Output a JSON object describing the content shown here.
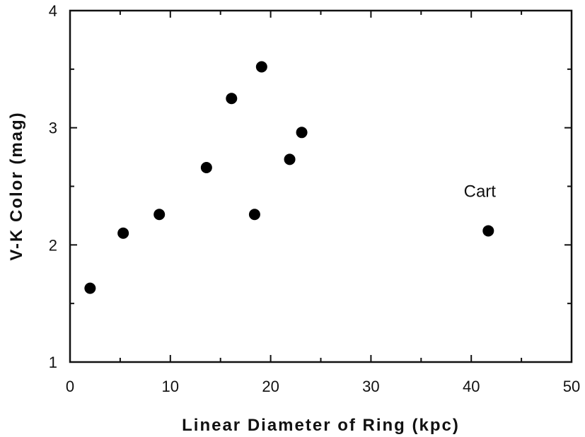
{
  "chart_data": {
    "type": "scatter",
    "xlabel": "Linear Diameter of Ring (kpc)",
    "ylabel": "V-K Color (mag)",
    "xlim": [
      0,
      50
    ],
    "ylim": [
      1,
      4
    ],
    "xticks": [
      0,
      10,
      20,
      30,
      40,
      50
    ],
    "yticks": [
      1,
      2,
      3,
      4
    ],
    "grid": false,
    "points": [
      {
        "x": 2.0,
        "y": 1.63
      },
      {
        "x": 5.3,
        "y": 2.1
      },
      {
        "x": 8.9,
        "y": 2.26
      },
      {
        "x": 13.6,
        "y": 2.66
      },
      {
        "x": 16.1,
        "y": 3.25
      },
      {
        "x": 18.4,
        "y": 2.26
      },
      {
        "x": 19.1,
        "y": 3.52
      },
      {
        "x": 21.9,
        "y": 2.73
      },
      {
        "x": 23.1,
        "y": 2.96
      },
      {
        "x": 41.7,
        "y": 2.12
      }
    ],
    "annotations": [
      {
        "text": "Cart",
        "x": 41.7,
        "y": 2.12
      }
    ],
    "marker_color": "#000000"
  }
}
